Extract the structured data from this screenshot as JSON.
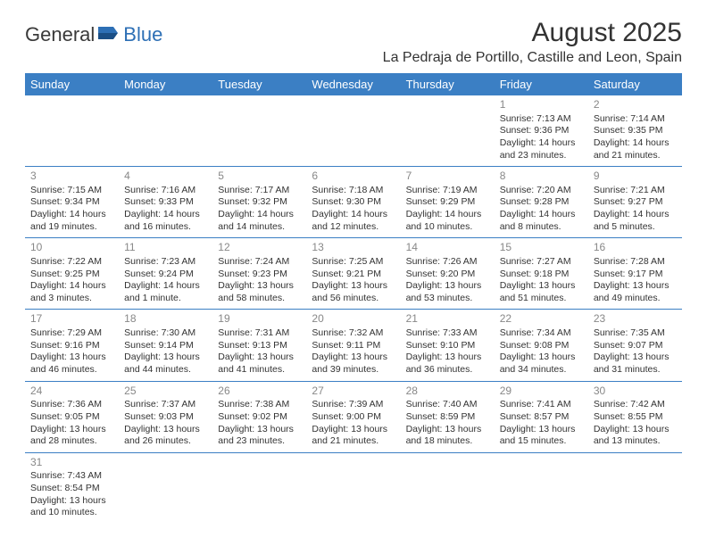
{
  "brand": {
    "part1": "General",
    "part2": "Blue"
  },
  "title": "August 2025",
  "location": "La Pedraja de Portillo, Castille and Leon, Spain",
  "colors": {
    "header_bg": "#3b7fc4",
    "header_text": "#ffffff",
    "daynum": "#888888",
    "text": "#333333",
    "border": "#3b7fc4"
  },
  "day_headers": [
    "Sunday",
    "Monday",
    "Tuesday",
    "Wednesday",
    "Thursday",
    "Friday",
    "Saturday"
  ],
  "weeks": [
    [
      null,
      null,
      null,
      null,
      null,
      {
        "n": "1",
        "sr": "Sunrise: 7:13 AM",
        "ss": "Sunset: 9:36 PM",
        "d1": "Daylight: 14 hours",
        "d2": "and 23 minutes."
      },
      {
        "n": "2",
        "sr": "Sunrise: 7:14 AM",
        "ss": "Sunset: 9:35 PM",
        "d1": "Daylight: 14 hours",
        "d2": "and 21 minutes."
      }
    ],
    [
      {
        "n": "3",
        "sr": "Sunrise: 7:15 AM",
        "ss": "Sunset: 9:34 PM",
        "d1": "Daylight: 14 hours",
        "d2": "and 19 minutes."
      },
      {
        "n": "4",
        "sr": "Sunrise: 7:16 AM",
        "ss": "Sunset: 9:33 PM",
        "d1": "Daylight: 14 hours",
        "d2": "and 16 minutes."
      },
      {
        "n": "5",
        "sr": "Sunrise: 7:17 AM",
        "ss": "Sunset: 9:32 PM",
        "d1": "Daylight: 14 hours",
        "d2": "and 14 minutes."
      },
      {
        "n": "6",
        "sr": "Sunrise: 7:18 AM",
        "ss": "Sunset: 9:30 PM",
        "d1": "Daylight: 14 hours",
        "d2": "and 12 minutes."
      },
      {
        "n": "7",
        "sr": "Sunrise: 7:19 AM",
        "ss": "Sunset: 9:29 PM",
        "d1": "Daylight: 14 hours",
        "d2": "and 10 minutes."
      },
      {
        "n": "8",
        "sr": "Sunrise: 7:20 AM",
        "ss": "Sunset: 9:28 PM",
        "d1": "Daylight: 14 hours",
        "d2": "and 8 minutes."
      },
      {
        "n": "9",
        "sr": "Sunrise: 7:21 AM",
        "ss": "Sunset: 9:27 PM",
        "d1": "Daylight: 14 hours",
        "d2": "and 5 minutes."
      }
    ],
    [
      {
        "n": "10",
        "sr": "Sunrise: 7:22 AM",
        "ss": "Sunset: 9:25 PM",
        "d1": "Daylight: 14 hours",
        "d2": "and 3 minutes."
      },
      {
        "n": "11",
        "sr": "Sunrise: 7:23 AM",
        "ss": "Sunset: 9:24 PM",
        "d1": "Daylight: 14 hours",
        "d2": "and 1 minute."
      },
      {
        "n": "12",
        "sr": "Sunrise: 7:24 AM",
        "ss": "Sunset: 9:23 PM",
        "d1": "Daylight: 13 hours",
        "d2": "and 58 minutes."
      },
      {
        "n": "13",
        "sr": "Sunrise: 7:25 AM",
        "ss": "Sunset: 9:21 PM",
        "d1": "Daylight: 13 hours",
        "d2": "and 56 minutes."
      },
      {
        "n": "14",
        "sr": "Sunrise: 7:26 AM",
        "ss": "Sunset: 9:20 PM",
        "d1": "Daylight: 13 hours",
        "d2": "and 53 minutes."
      },
      {
        "n": "15",
        "sr": "Sunrise: 7:27 AM",
        "ss": "Sunset: 9:18 PM",
        "d1": "Daylight: 13 hours",
        "d2": "and 51 minutes."
      },
      {
        "n": "16",
        "sr": "Sunrise: 7:28 AM",
        "ss": "Sunset: 9:17 PM",
        "d1": "Daylight: 13 hours",
        "d2": "and 49 minutes."
      }
    ],
    [
      {
        "n": "17",
        "sr": "Sunrise: 7:29 AM",
        "ss": "Sunset: 9:16 PM",
        "d1": "Daylight: 13 hours",
        "d2": "and 46 minutes."
      },
      {
        "n": "18",
        "sr": "Sunrise: 7:30 AM",
        "ss": "Sunset: 9:14 PM",
        "d1": "Daylight: 13 hours",
        "d2": "and 44 minutes."
      },
      {
        "n": "19",
        "sr": "Sunrise: 7:31 AM",
        "ss": "Sunset: 9:13 PM",
        "d1": "Daylight: 13 hours",
        "d2": "and 41 minutes."
      },
      {
        "n": "20",
        "sr": "Sunrise: 7:32 AM",
        "ss": "Sunset: 9:11 PM",
        "d1": "Daylight: 13 hours",
        "d2": "and 39 minutes."
      },
      {
        "n": "21",
        "sr": "Sunrise: 7:33 AM",
        "ss": "Sunset: 9:10 PM",
        "d1": "Daylight: 13 hours",
        "d2": "and 36 minutes."
      },
      {
        "n": "22",
        "sr": "Sunrise: 7:34 AM",
        "ss": "Sunset: 9:08 PM",
        "d1": "Daylight: 13 hours",
        "d2": "and 34 minutes."
      },
      {
        "n": "23",
        "sr": "Sunrise: 7:35 AM",
        "ss": "Sunset: 9:07 PM",
        "d1": "Daylight: 13 hours",
        "d2": "and 31 minutes."
      }
    ],
    [
      {
        "n": "24",
        "sr": "Sunrise: 7:36 AM",
        "ss": "Sunset: 9:05 PM",
        "d1": "Daylight: 13 hours",
        "d2": "and 28 minutes."
      },
      {
        "n": "25",
        "sr": "Sunrise: 7:37 AM",
        "ss": "Sunset: 9:03 PM",
        "d1": "Daylight: 13 hours",
        "d2": "and 26 minutes."
      },
      {
        "n": "26",
        "sr": "Sunrise: 7:38 AM",
        "ss": "Sunset: 9:02 PM",
        "d1": "Daylight: 13 hours",
        "d2": "and 23 minutes."
      },
      {
        "n": "27",
        "sr": "Sunrise: 7:39 AM",
        "ss": "Sunset: 9:00 PM",
        "d1": "Daylight: 13 hours",
        "d2": "and 21 minutes."
      },
      {
        "n": "28",
        "sr": "Sunrise: 7:40 AM",
        "ss": "Sunset: 8:59 PM",
        "d1": "Daylight: 13 hours",
        "d2": "and 18 minutes."
      },
      {
        "n": "29",
        "sr": "Sunrise: 7:41 AM",
        "ss": "Sunset: 8:57 PM",
        "d1": "Daylight: 13 hours",
        "d2": "and 15 minutes."
      },
      {
        "n": "30",
        "sr": "Sunrise: 7:42 AM",
        "ss": "Sunset: 8:55 PM",
        "d1": "Daylight: 13 hours",
        "d2": "and 13 minutes."
      }
    ],
    [
      {
        "n": "31",
        "sr": "Sunrise: 7:43 AM",
        "ss": "Sunset: 8:54 PM",
        "d1": "Daylight: 13 hours",
        "d2": "and 10 minutes."
      },
      null,
      null,
      null,
      null,
      null,
      null
    ]
  ]
}
